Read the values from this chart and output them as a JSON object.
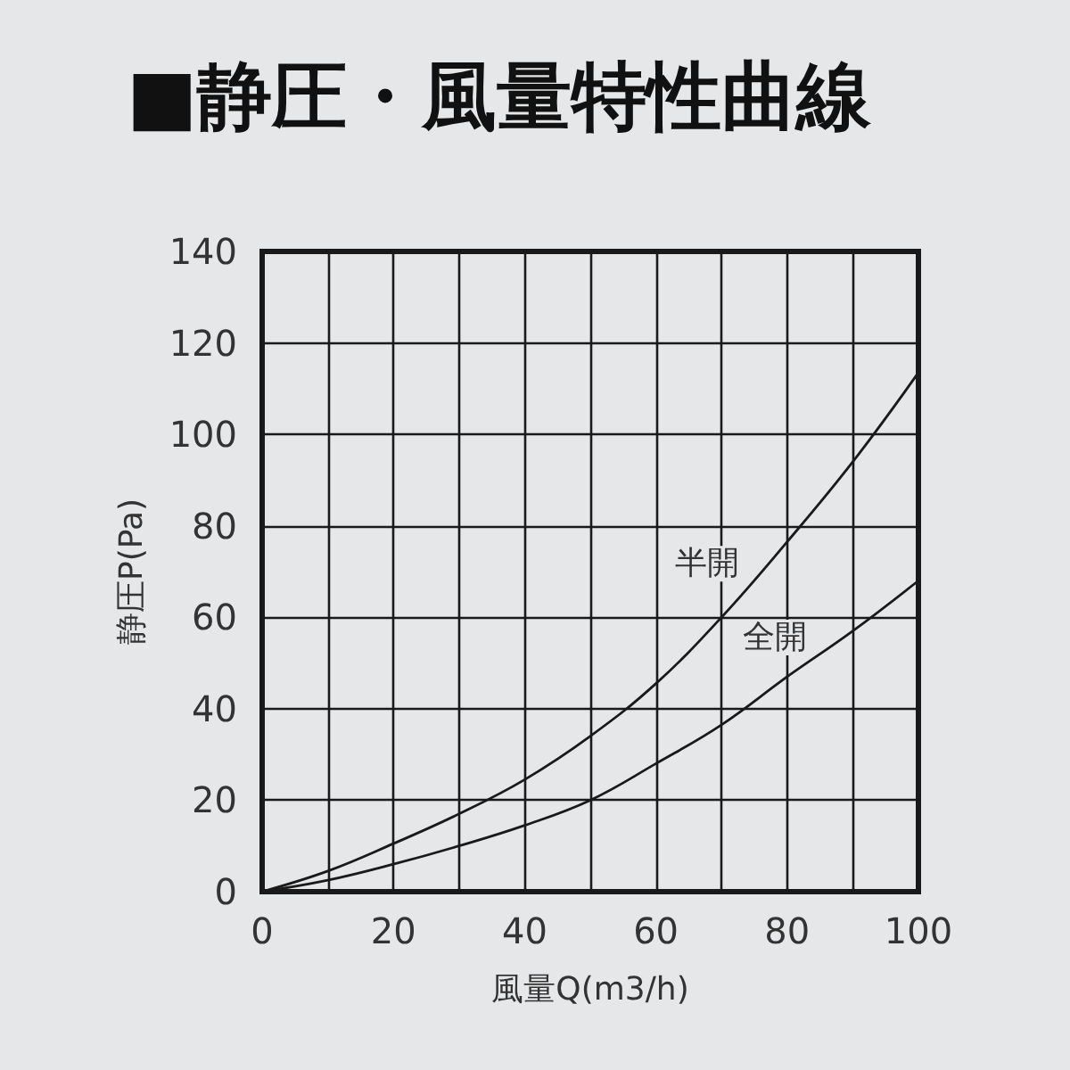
{
  "chart_data": {
    "type": "line",
    "title": "■静圧・風量特性曲線",
    "xlabel": "風量Q(m3/h)",
    "ylabel": "静圧P(Pa)",
    "x": [
      0,
      10,
      20,
      30,
      40,
      50,
      60,
      70,
      80,
      90,
      100
    ],
    "series": [
      {
        "name": "半開",
        "color": "#1a1a1a",
        "values": [
          0,
          4.5,
          10.5,
          17,
          24.5,
          34,
          45.5,
          60,
          76.5,
          94,
          113.5
        ]
      },
      {
        "name": "全開",
        "color": "#1a1a1a",
        "values": [
          0,
          2.5,
          6,
          10,
          14.5,
          20,
          28,
          36.5,
          47,
          57,
          68
        ]
      }
    ],
    "xlim": [
      0,
      100
    ],
    "xticks": [
      0,
      {
        "value": 10,
        "label": null
      },
      20,
      {
        "value": 30,
        "label": null
      },
      40,
      {
        "value": 50,
        "label": null
      },
      60,
      {
        "value": 70,
        "label": null
      },
      80,
      {
        "value": 90,
        "label": null
      },
      100
    ],
    "ylim": [
      0,
      140
    ],
    "yticks": [
      0,
      20,
      40,
      60,
      80,
      100,
      120,
      140
    ],
    "grid": true,
    "legend": false,
    "marker": "none",
    "line_style": "solid"
  }
}
